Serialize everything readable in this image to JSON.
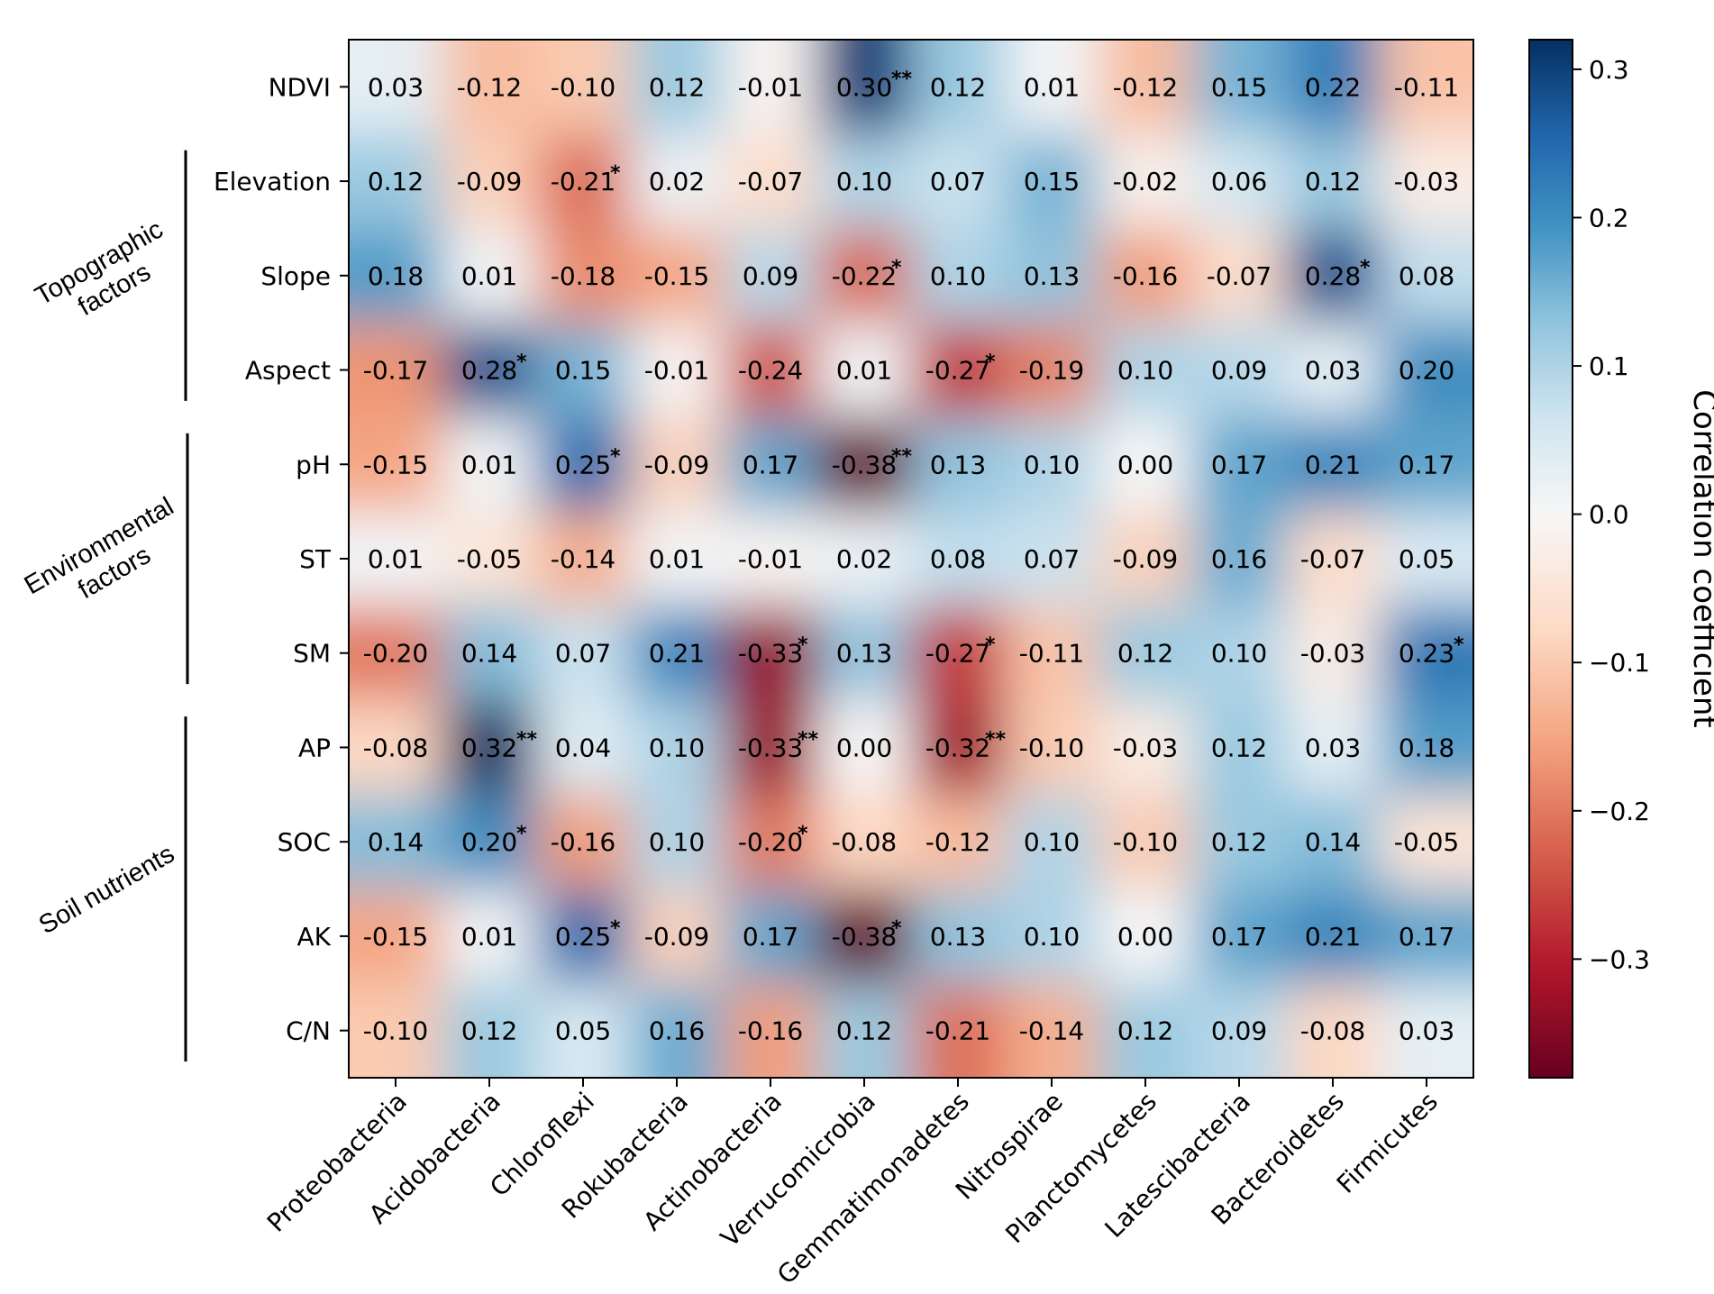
{
  "chart_data": {
    "type": "heatmap",
    "title": "",
    "xlabel": "",
    "ylabel": "",
    "rows": [
      "NDVI",
      "Elevation",
      "Slope",
      "Aspect",
      "pH",
      "ST",
      "SM",
      "AP",
      "SOC",
      "AK",
      "C/N"
    ],
    "columns": [
      "Proteobacteria",
      "Acidobacteria",
      "Chloroflexi",
      "Rokubacteria",
      "Actinobacteria",
      "Verrucomicrobia",
      "Gemmatimonadetes",
      "Nitrospirae",
      "Planctomycetes",
      "Latescibacteria",
      "Bacteroidetes",
      "Firmicutes"
    ],
    "values": [
      [
        0.03,
        -0.12,
        -0.1,
        0.12,
        -0.01,
        0.3,
        0.12,
        0.01,
        -0.12,
        0.15,
        0.22,
        -0.11
      ],
      [
        0.12,
        -0.09,
        -0.21,
        0.02,
        -0.07,
        0.1,
        0.07,
        0.15,
        -0.02,
        0.06,
        0.12,
        -0.03
      ],
      [
        0.18,
        0.01,
        -0.18,
        -0.15,
        0.09,
        -0.22,
        0.1,
        0.13,
        -0.16,
        -0.07,
        0.28,
        0.08
      ],
      [
        -0.17,
        0.28,
        0.15,
        -0.01,
        -0.24,
        0.01,
        -0.27,
        -0.19,
        0.1,
        0.09,
        0.03,
        0.2
      ],
      [
        -0.15,
        0.01,
        0.25,
        -0.09,
        0.17,
        -0.38,
        0.13,
        0.1,
        0.0,
        0.17,
        0.21,
        0.17
      ],
      [
        0.01,
        -0.05,
        -0.14,
        0.01,
        -0.01,
        0.02,
        0.08,
        0.07,
        -0.09,
        0.16,
        -0.07,
        0.05
      ],
      [
        -0.2,
        0.14,
        0.07,
        0.21,
        -0.33,
        0.13,
        -0.27,
        -0.11,
        0.12,
        0.1,
        -0.03,
        0.23
      ],
      [
        -0.08,
        0.32,
        0.04,
        0.1,
        -0.33,
        0.0,
        -0.32,
        -0.1,
        -0.03,
        0.12,
        0.03,
        0.18
      ],
      [
        0.14,
        0.2,
        -0.16,
        0.1,
        -0.2,
        -0.08,
        -0.12,
        0.1,
        -0.1,
        0.12,
        0.14,
        -0.05
      ],
      [
        -0.15,
        0.01,
        0.25,
        -0.09,
        0.17,
        -0.38,
        0.13,
        0.1,
        0.0,
        0.17,
        0.21,
        0.17
      ],
      [
        -0.1,
        0.12,
        0.05,
        0.16,
        -0.16,
        0.12,
        -0.21,
        -0.14,
        0.12,
        0.09,
        -0.08,
        0.03
      ]
    ],
    "labels": [
      [
        "0.03",
        "-0.12",
        "-0.10",
        "0.12",
        "-0.01",
        "0.30",
        "0.12",
        "0.01",
        "-0.12",
        "0.15",
        "0.22",
        "-0.11"
      ],
      [
        "0.12",
        "-0.09",
        "-0.21",
        "0.02",
        "-0.07",
        "0.10",
        "0.07",
        "0.15",
        "-0.02",
        "0.06",
        "0.12",
        "-0.03"
      ],
      [
        "0.18",
        "0.01",
        "-0.18",
        "-0.15",
        "0.09",
        "-0.22",
        "0.10",
        "0.13",
        "-0.16",
        "-0.07",
        "0.28",
        "0.08"
      ],
      [
        "-0.17",
        "0.28",
        "0.15",
        "-0.01",
        "-0.24",
        "0.01",
        "-0.27",
        "-0.19",
        "0.10",
        "0.09",
        "0.03",
        "0.20"
      ],
      [
        "-0.15",
        "0.01",
        "0.25",
        "-0.09",
        "0.17",
        "-0.38",
        "0.13",
        "0.10",
        "0.00",
        "0.17",
        "0.21",
        "0.17"
      ],
      [
        "0.01",
        "-0.05",
        "-0.14",
        "0.01",
        "-0.01",
        "0.02",
        "0.08",
        "0.07",
        "-0.09",
        "0.16",
        "-0.07",
        "0.05"
      ],
      [
        "-0.20",
        "0.14",
        "0.07",
        "0.21",
        "-0.33",
        "0.13",
        "-0.27",
        "-0.11",
        "0.12",
        "0.10",
        "-0.03",
        "0.23"
      ],
      [
        "-0.08",
        "0.32",
        "0.04",
        "0.10",
        "-0.33",
        "0.00",
        "-0.32",
        "-0.10",
        "-0.03",
        "0.12",
        "0.03",
        "0.18"
      ],
      [
        "0.14",
        "0.20",
        "-0.16",
        "0.10",
        "-0.20",
        "-0.08",
        "-0.12",
        "0.10",
        "-0.10",
        "0.12",
        "0.14",
        "-0.05"
      ],
      [
        "-0.15",
        "0.01",
        "0.25",
        "-0.09",
        "0.17",
        "-0.38",
        "0.13",
        "0.10",
        "0.00",
        "0.17",
        "0.21",
        "0.17"
      ],
      [
        "-0.10",
        "0.12",
        "0.05",
        "0.16",
        "-0.16",
        "0.12",
        "-0.21",
        "-0.14",
        "0.12",
        "0.09",
        "-0.08",
        "0.03"
      ]
    ],
    "significance": [
      [
        "",
        "",
        "",
        "",
        "",
        "**",
        "",
        "",
        "",
        "",
        "",
        ""
      ],
      [
        "",
        "",
        "*",
        "",
        "",
        "",
        "",
        "",
        "",
        "",
        "",
        ""
      ],
      [
        "",
        "",
        "",
        "",
        "",
        "*",
        "",
        "",
        "",
        "",
        "*",
        ""
      ],
      [
        "",
        "*",
        "",
        "",
        "",
        "",
        "*",
        "",
        "",
        "",
        "",
        ""
      ],
      [
        "",
        "",
        "*",
        "",
        "",
        "**",
        "",
        "",
        "",
        "",
        "",
        ""
      ],
      [
        "",
        "",
        "",
        "",
        "",
        "",
        "",
        "",
        "",
        "",
        "",
        ""
      ],
      [
        "",
        "",
        "",
        "",
        "*",
        "",
        "*",
        "",
        "",
        "",
        "",
        "*"
      ],
      [
        "",
        "**",
        "",
        "",
        "**",
        "",
        "**",
        "",
        "",
        "",
        "",
        ""
      ],
      [
        "",
        "*",
        "",
        "",
        "*",
        "",
        "",
        "",
        "",
        "",
        "",
        ""
      ],
      [
        "",
        "",
        "*",
        "",
        "",
        "*",
        "",
        "",
        "",
        "",
        "",
        ""
      ],
      [
        "",
        "",
        "",
        "",
        "",
        "",
        "",
        "",
        "",
        "",
        "",
        ""
      ]
    ],
    "row_groups": [
      {
        "label": "Topographic factors",
        "lines": [
          "Topographic",
          "factors"
        ],
        "rows": [
          "Elevation",
          "Slope",
          "Aspect"
        ]
      },
      {
        "label": "Environmental factors",
        "lines": [
          "Environmental",
          "factors"
        ],
        "rows": [
          "pH",
          "ST",
          "SM"
        ]
      },
      {
        "label": "Soil nutrients",
        "lines": [
          "Soil nutrients"
        ],
        "rows": [
          "AP",
          "SOC",
          "AK",
          "C/N"
        ]
      }
    ],
    "colorbar": {
      "label": "Correlation coefficient",
      "range": [
        -0.38,
        0.32
      ],
      "ticks": [
        0.3,
        0.2,
        0.1,
        0.0,
        -0.1,
        -0.2,
        -0.3
      ],
      "tick_labels": [
        "0.3",
        "0.2",
        "0.1",
        "0.0",
        "−0.1",
        "−0.2",
        "−0.3"
      ],
      "colormap": "RdBu",
      "stops": [
        "#67001f",
        "#b2182b",
        "#d6604d",
        "#f4a582",
        "#fddbc7",
        "#f7f7f7",
        "#d1e5f0",
        "#92c5de",
        "#4393c3",
        "#2166ac",
        "#053061"
      ]
    }
  }
}
